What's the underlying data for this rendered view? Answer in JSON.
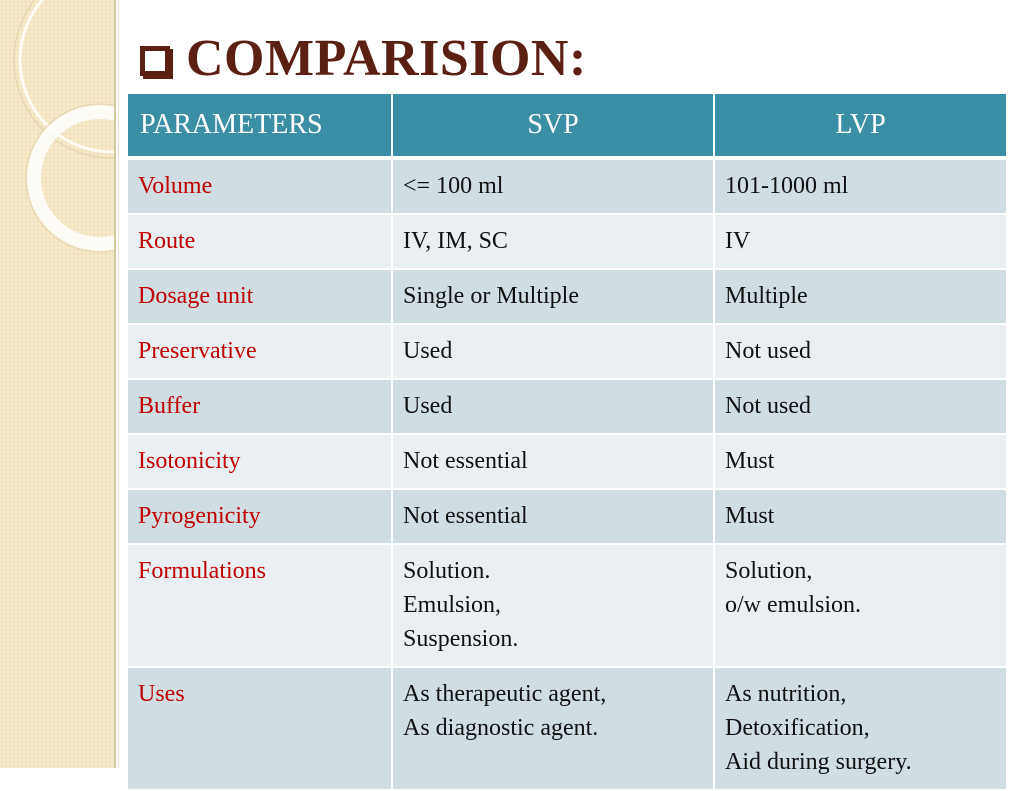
{
  "title": {
    "text": "COMPARISION:"
  },
  "table": {
    "headers": [
      "PARAMETERS",
      "SVP",
      "LVP"
    ],
    "rows": [
      {
        "param": "Volume",
        "svp": [
          "<= 100 ml"
        ],
        "lvp": [
          "101-1000 ml"
        ]
      },
      {
        "param": "Route",
        "svp": [
          "IV, IM, SC"
        ],
        "lvp": [
          "IV"
        ]
      },
      {
        "param": "Dosage unit",
        "svp": [
          "Single or Multiple"
        ],
        "lvp": [
          "Multiple"
        ]
      },
      {
        "param": "Preservative",
        "svp": [
          "Used"
        ],
        "lvp": [
          "Not used"
        ]
      },
      {
        "param": "Buffer",
        "svp": [
          "Used"
        ],
        "lvp": [
          "Not used"
        ]
      },
      {
        "param": "Isotonicity",
        "svp": [
          "Not essential"
        ],
        "lvp": [
          "Must"
        ]
      },
      {
        "param": "Pyrogenicity",
        "svp": [
          "Not essential"
        ],
        "lvp": [
          "Must"
        ]
      },
      {
        "param": "Formulations",
        "svp": [
          "Solution.",
          "Emulsion,",
          "Suspension."
        ],
        "lvp": [
          "Solution,",
          "o/w emulsion."
        ]
      },
      {
        "param": "Uses",
        "svp": [
          "As therapeutic agent,",
          "As diagnostic agent."
        ],
        "lvp": [
          "As nutrition,",
          "Detoxification,",
          "Aid during surgery."
        ]
      }
    ]
  },
  "colors": {
    "header_bg": "#3a8fa7",
    "row_odd": "#d0dde3",
    "row_even": "#e9eff2",
    "param_text": "#c00000",
    "title_text": "#5b1f14"
  }
}
